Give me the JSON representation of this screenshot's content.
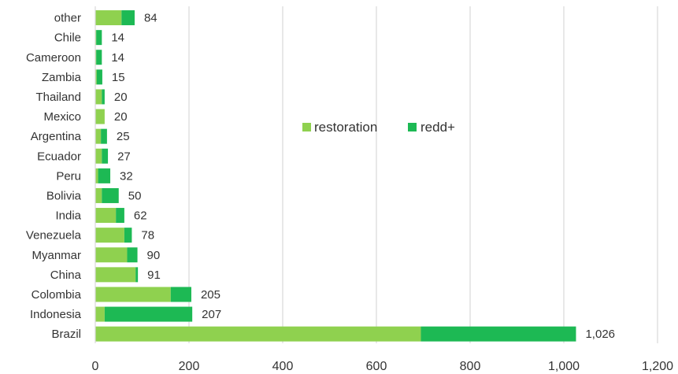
{
  "chart_data": {
    "type": "bar",
    "orientation": "horizontal",
    "stacked": true,
    "categories": [
      "other",
      "Chile",
      "Cameroon",
      "Zambia",
      "Thailand",
      "Mexico",
      "Argentina",
      "Ecuador",
      "Peru",
      "Bolivia",
      "India",
      "Venezuela",
      "Myanmar",
      "China",
      "Colombia",
      "Indonesia",
      "Brazil"
    ],
    "series": [
      {
        "name": "restoration",
        "color": "#8fd14f",
        "values": [
          56,
          2,
          2,
          3,
          14,
          20,
          12,
          14,
          6,
          14,
          44,
          62,
          68,
          86,
          161,
          20,
          695
        ]
      },
      {
        "name": "redd+",
        "color": "#1db954",
        "values": [
          28,
          12,
          12,
          12,
          6,
          0,
          13,
          13,
          26,
          36,
          18,
          16,
          22,
          5,
          44,
          187,
          331
        ]
      }
    ],
    "totals": [
      84,
      14,
      14,
      15,
      20,
      20,
      25,
      27,
      32,
      50,
      62,
      78,
      90,
      91,
      205,
      207,
      1026
    ],
    "total_labels": [
      "84",
      "14",
      "14",
      "15",
      "20",
      "20",
      "25",
      "27",
      "32",
      "50",
      "62",
      "78",
      "90",
      "91",
      "205",
      "207",
      "1,026"
    ],
    "xlim": [
      0,
      1200
    ],
    "xticks": [
      0,
      200,
      400,
      600,
      800,
      1000,
      1200
    ],
    "xtick_labels": [
      "0",
      "200",
      "400",
      "600",
      "800",
      "1,000",
      "1,200"
    ],
    "grid": "vertical",
    "legend_position": "center-right"
  }
}
